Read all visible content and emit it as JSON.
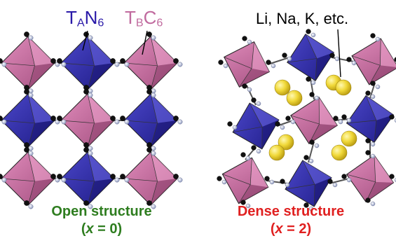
{
  "labels": {
    "tan6": {
      "main": "T",
      "sub1": "A",
      "mid": "N",
      "sub2": "6"
    },
    "tbc6": {
      "main": "T",
      "sub1": "B",
      "mid": "C",
      "sub2": "6"
    },
    "ions": "Li, Na, K, etc."
  },
  "captions": {
    "open": {
      "title": "Open structure",
      "cond_pre": "(",
      "var": "x",
      "cond_post": " = 0)"
    },
    "dense": {
      "title": "Dense structure",
      "cond_pre": "(",
      "var": "x",
      "cond_post": " = 2)"
    }
  },
  "colors": {
    "blue_octahedron": "#2f2aa6",
    "pink_octahedron": "#c56a9c",
    "ion": "#e8d23a",
    "carbon_atom": "#111111",
    "nitrogen_atom": "#c8d2ea",
    "open_caption": "#2e7d1f",
    "dense_caption": "#e02020"
  }
}
